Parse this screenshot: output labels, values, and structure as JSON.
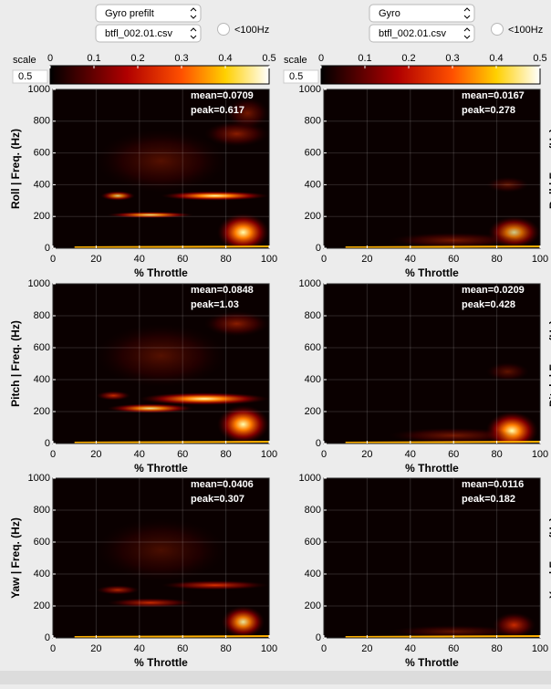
{
  "columns": [
    {
      "source": "Gyro prefilt",
      "file": "btfl_002.01.csv",
      "filter": "<100Hz",
      "scale_label": "scale",
      "scale_value": "0.5",
      "panels": [
        {
          "ylabel": "Roll  |  Freq. (Hz)",
          "mean": "mean=0.0709",
          "peak": "peak=0.617"
        },
        {
          "ylabel": "Pitch  |  Freq. (Hz)",
          "mean": "mean=0.0848",
          "peak": "peak=1.03"
        },
        {
          "ylabel": "Yaw  |  Freq. (Hz)",
          "mean": "mean=0.0406",
          "peak": "peak=0.307"
        }
      ]
    },
    {
      "source": "Gyro",
      "file": "btfl_002.01.csv",
      "filter": "<100Hz",
      "scale_label": "scale",
      "scale_value": "0.5",
      "panels": [
        {
          "ylabel": "Roll  |  Freq. (Hz)",
          "mean": "mean=0.0167",
          "peak": "peak=0.278"
        },
        {
          "ylabel": "Pitch  |  Freq. (Hz)",
          "mean": "mean=0.0209",
          "peak": "peak=0.428"
        },
        {
          "ylabel": "Yaw  |  Freq. (Hz)",
          "mean": "mean=0.0116",
          "peak": "peak=0.182"
        }
      ]
    }
  ],
  "colorbar": {
    "ticks": [
      0,
      0.1,
      0.2,
      0.3,
      0.4,
      0.5
    ],
    "lim": [
      0,
      0.5
    ]
  },
  "axes": {
    "xlabel": "% Throttle",
    "xlim": [
      0,
      100
    ],
    "xticks": [
      0,
      20,
      40,
      60,
      80,
      100
    ],
    "ylim": [
      0,
      1000
    ],
    "yticks": [
      0,
      200,
      400,
      600,
      800,
      1000
    ]
  }
}
